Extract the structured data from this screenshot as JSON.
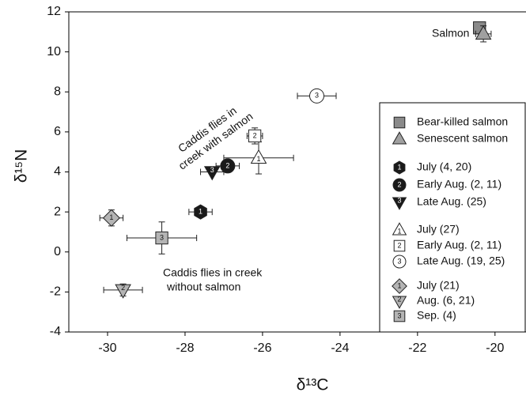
{
  "chart_data": {
    "type": "scatter",
    "x_label": "δ¹³C",
    "y_label": "δ¹⁵N",
    "xlim": [
      -31,
      -19.2
    ],
    "ylim": [
      -4,
      12
    ],
    "xticks": [
      -30,
      -28,
      -26,
      -24,
      -22,
      -20
    ],
    "yticks": [
      -4,
      -2,
      0,
      2,
      4,
      6,
      8,
      10,
      12
    ],
    "annotations": [
      {
        "lines": [
          "Salmon"
        ]
      },
      {
        "lines": [
          "Caddis flies in",
          "creek with salmon"
        ]
      },
      {
        "lines": [
          "Caddis flies in creek",
          "without salmon"
        ]
      }
    ],
    "series": [
      {
        "name": "Bear-killed salmon",
        "marker": "square",
        "color": "#8a8a8a",
        "x": [
          -20.4
        ],
        "y": [
          11.2
        ],
        "xerr": [
          0.15
        ],
        "yerr": [
          0.2
        ]
      },
      {
        "name": "Senescent salmon",
        "marker": "triangle",
        "color": "#a0a0a0",
        "x": [
          -20.3
        ],
        "y": [
          10.9
        ],
        "xerr": [
          0.2
        ],
        "yerr": [
          0.4
        ]
      },
      {
        "name": "July (4, 20)",
        "marker": "hexagon",
        "marker_label": "1",
        "color": "#1a1a1a",
        "x": [
          -27.6
        ],
        "y": [
          2.0
        ],
        "xerr": [
          0.3
        ],
        "yerr": [
          0.1
        ]
      },
      {
        "name": "Early Aug. (2, 11)",
        "marker": "circle",
        "marker_label": "2",
        "color": "#1a1a1a",
        "x": [
          -26.9
        ],
        "y": [
          4.3
        ],
        "xerr": [
          0.3
        ],
        "yerr": [
          0.1
        ]
      },
      {
        "name": "Late Aug. (25)",
        "marker": "triangle-down",
        "marker_label": "3",
        "color": "#1a1a1a",
        "x": [
          -27.3
        ],
        "y": [
          4.0
        ],
        "xerr": [
          0.3
        ],
        "yerr": [
          0.1
        ]
      },
      {
        "name": "July (27)",
        "marker": "triangle",
        "marker_label": "1",
        "color": "#ffffff",
        "x": [
          -26.1
        ],
        "y": [
          4.7
        ],
        "xerr": [
          0.9
        ],
        "yerr": [
          0.8
        ]
      },
      {
        "name": "Early Aug. (2, 11)",
        "marker": "square",
        "marker_label": "2",
        "color": "#ffffff",
        "x": [
          -26.2
        ],
        "y": [
          5.8
        ],
        "xerr": [
          0.2
        ],
        "yerr": [
          0.4
        ]
      },
      {
        "name": "Late Aug. (19, 25)",
        "marker": "circle",
        "marker_label": "3",
        "color": "#ffffff",
        "x": [
          -24.6
        ],
        "y": [
          7.8
        ],
        "xerr": [
          0.5
        ],
        "yerr": [
          0.1
        ]
      },
      {
        "name": "July (21)",
        "marker": "diamond",
        "marker_label": "1",
        "color": "#b4b4b4",
        "x": [
          -29.9
        ],
        "y": [
          1.7
        ],
        "xerr": [
          0.3
        ],
        "yerr": [
          0.4
        ]
      },
      {
        "name": "Aug. (6, 21)",
        "marker": "triangle-down",
        "marker_label": "2",
        "color": "#b4b4b4",
        "x": [
          -29.6
        ],
        "y": [
          -1.9
        ],
        "xerr": [
          0.5
        ],
        "yerr": [
          0.3
        ]
      },
      {
        "name": "Sep. (4)",
        "marker": "square",
        "marker_label": "3",
        "color": "#b4b4b4",
        "x": [
          -28.6
        ],
        "y": [
          0.7
        ],
        "xerr": [
          0.9
        ],
        "yerr": [
          0.8
        ]
      }
    ]
  }
}
